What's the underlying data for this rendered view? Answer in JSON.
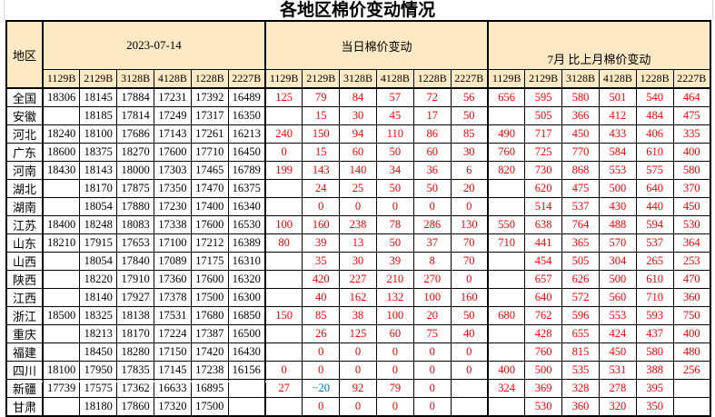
{
  "title": "各地区棉价变动情况",
  "colors": {
    "header_bg": "#FDE9C4",
    "price_text": "#000000",
    "change_text": "#FF0000",
    "negative_text": "#0070C0",
    "grid": "#000000"
  },
  "table": {
    "region_header": "地区",
    "groups": [
      {
        "label": "2023-07-14"
      },
      {
        "label": "当日棉价变动"
      },
      {
        "label": "7月 比上月棉价变动"
      }
    ],
    "grade_columns": [
      "1129B",
      "2129B",
      "3128B",
      "4128B",
      "1228B",
      "2227B"
    ],
    "rows": [
      {
        "region": "全国",
        "date_prices": [
          "18306",
          "18145",
          "17884",
          "17231",
          "17392",
          "16489"
        ],
        "daily_change": [
          "125",
          "79",
          "84",
          "57",
          "72",
          "56"
        ],
        "monthly_change": [
          "656",
          "595",
          "580",
          "501",
          "540",
          "464"
        ]
      },
      {
        "region": "安徽",
        "date_prices": [
          "",
          "18185",
          "17814",
          "17249",
          "17317",
          "16350"
        ],
        "daily_change": [
          "",
          "15",
          "30",
          "45",
          "17",
          "50"
        ],
        "monthly_change": [
          "",
          "505",
          "366",
          "412",
          "484",
          "475"
        ]
      },
      {
        "region": "河北",
        "date_prices": [
          "18240",
          "18100",
          "17686",
          "17143",
          "17261",
          "16213"
        ],
        "daily_change": [
          "240",
          "150",
          "94",
          "110",
          "86",
          "85"
        ],
        "monthly_change": [
          "490",
          "717",
          "450",
          "433",
          "406",
          "335"
        ]
      },
      {
        "region": "广东",
        "date_prices": [
          "18600",
          "18375",
          "18270",
          "17600",
          "17710",
          "16450"
        ],
        "daily_change": [
          "0",
          "15",
          "60",
          "50",
          "60",
          "30"
        ],
        "monthly_change": [
          "760",
          "725",
          "770",
          "584",
          "610",
          "400"
        ]
      },
      {
        "region": "河南",
        "date_prices": [
          "18430",
          "18143",
          "18000",
          "17303",
          "17465",
          "16789"
        ],
        "daily_change": [
          "199",
          "143",
          "140",
          "34",
          "36",
          "6"
        ],
        "monthly_change": [
          "820",
          "730",
          "868",
          "553",
          "575",
          "580"
        ]
      },
      {
        "region": "湖北",
        "date_prices": [
          "",
          "18170",
          "17875",
          "17350",
          "17470",
          "16375"
        ],
        "daily_change": [
          "",
          "24",
          "25",
          "50",
          "50",
          "20"
        ],
        "monthly_change": [
          "",
          "620",
          "475",
          "500",
          "640",
          "370"
        ]
      },
      {
        "region": "湖南",
        "date_prices": [
          "",
          "18054",
          "17880",
          "17230",
          "17400",
          "16340"
        ],
        "daily_change": [
          "",
          "0",
          "0",
          "0",
          "0",
          "0"
        ],
        "monthly_change": [
          "",
          "514",
          "537",
          "430",
          "440",
          "450"
        ]
      },
      {
        "region": "江苏",
        "date_prices": [
          "18400",
          "18248",
          "18083",
          "17338",
          "17600",
          "16530"
        ],
        "daily_change": [
          "100",
          "160",
          "238",
          "78",
          "286",
          "130"
        ],
        "monthly_change": [
          "550",
          "638",
          "764",
          "488",
          "594",
          "530"
        ]
      },
      {
        "region": "山东",
        "date_prices": [
          "18210",
          "17915",
          "17653",
          "17100",
          "17212",
          "16389"
        ],
        "daily_change": [
          "80",
          "39",
          "13",
          "50",
          "37",
          "70"
        ],
        "monthly_change": [
          "710",
          "441",
          "365",
          "570",
          "537",
          "364"
        ]
      },
      {
        "region": "山西",
        "date_prices": [
          "",
          "18054",
          "17840",
          "17089",
          "17175",
          "16310"
        ],
        "daily_change": [
          "",
          "35",
          "30",
          "39",
          "8",
          "70"
        ],
        "monthly_change": [
          "",
          "454",
          "505",
          "304",
          "265",
          "253"
        ]
      },
      {
        "region": "陕西",
        "date_prices": [
          "",
          "18220",
          "17910",
          "17360",
          "17600",
          "16320"
        ],
        "daily_change": [
          "",
          "420",
          "227",
          "210",
          "270",
          "0"
        ],
        "monthly_change": [
          "",
          "657",
          "626",
          "500",
          "610",
          "470"
        ]
      },
      {
        "region": "江西",
        "date_prices": [
          "",
          "18140",
          "17927",
          "17378",
          "17500",
          "16300"
        ],
        "daily_change": [
          "",
          "40",
          "162",
          "132",
          "100",
          "160"
        ],
        "monthly_change": [
          "",
          "640",
          "572",
          "560",
          "710",
          "360"
        ]
      },
      {
        "region": "浙江",
        "date_prices": [
          "18500",
          "18325",
          "18138",
          "17531",
          "17680",
          "16850"
        ],
        "daily_change": [
          "150",
          "85",
          "38",
          "100",
          "20",
          "50"
        ],
        "monthly_change": [
          "680",
          "762",
          "596",
          "553",
          "593",
          "750"
        ]
      },
      {
        "region": "重庆",
        "date_prices": [
          "",
          "18213",
          "18170",
          "17224",
          "17387",
          "16500"
        ],
        "daily_change": [
          "",
          "26",
          "125",
          "60",
          "75",
          "40"
        ],
        "monthly_change": [
          "",
          "428",
          "655",
          "424",
          "437",
          "400"
        ]
      },
      {
        "region": "福建",
        "date_prices": [
          "",
          "18450",
          "18280",
          "17150",
          "17420",
          "16430"
        ],
        "daily_change": [
          "",
          "0",
          "0",
          "0",
          "0",
          "0"
        ],
        "monthly_change": [
          "",
          "760",
          "815",
          "450",
          "580",
          "480"
        ]
      },
      {
        "region": "四川",
        "date_prices": [
          "18100",
          "17950",
          "17835",
          "17145",
          "17238",
          "16156"
        ],
        "daily_change": [
          "0",
          "0",
          "0",
          "0",
          "0",
          "0"
        ],
        "monthly_change": [
          "400",
          "500",
          "535",
          "531",
          "388",
          "256"
        ]
      },
      {
        "region": "新疆",
        "date_prices": [
          "17739",
          "17575",
          "17362",
          "16633",
          "16895",
          ""
        ],
        "daily_change": [
          "27",
          "−20",
          "92",
          "79",
          "0",
          ""
        ],
        "monthly_change": [
          "324",
          "369",
          "328",
          "278",
          "395",
          ""
        ]
      },
      {
        "region": "甘肃",
        "date_prices": [
          "",
          "18180",
          "17860",
          "17320",
          "17500",
          ""
        ],
        "daily_change": [
          "",
          "0",
          "0",
          "0",
          "0",
          ""
        ],
        "monthly_change": [
          "",
          "530",
          "360",
          "320",
          "350",
          ""
        ]
      }
    ]
  }
}
